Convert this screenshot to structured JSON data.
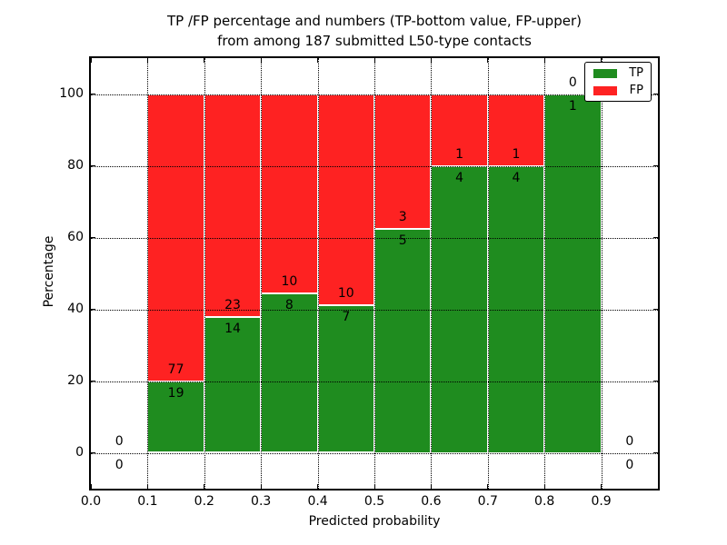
{
  "chart_data": {
    "type": "bar",
    "stacked": true,
    "normalized": "percent",
    "title_lines": [
      "TP /FP percentage and numbers (TP-bottom value, FP-upper)",
      "from among 187 submitted L50-type contacts"
    ],
    "xlabel": "Predicted probability",
    "ylabel": "Percentage",
    "xlim": [
      0.0,
      1.0
    ],
    "ylim": [
      -10,
      110
    ],
    "xticks": [
      0.0,
      0.1,
      0.2,
      0.3,
      0.4,
      0.5,
      0.6,
      0.7,
      0.8,
      0.9
    ],
    "xtick_labels": [
      "0.0",
      "0.1",
      "0.2",
      "0.3",
      "0.4",
      "0.5",
      "0.6",
      "0.7",
      "0.8",
      "0.9"
    ],
    "yticks": [
      0,
      20,
      40,
      60,
      80,
      100
    ],
    "ytick_labels": [
      "0",
      "20",
      "40",
      "60",
      "80",
      "100"
    ],
    "grid": true,
    "bin_width": 0.1,
    "total_contacts": 187,
    "legend": {
      "position": "upper-right",
      "entries": [
        {
          "label": "TP",
          "color": "#1f8c1f"
        },
        {
          "label": "FP",
          "color": "#fe2222"
        }
      ]
    },
    "series": [
      {
        "name": "TP",
        "color": "#1f8c1f",
        "values": [
          0,
          19,
          14,
          8,
          7,
          5,
          4,
          4,
          1,
          0
        ]
      },
      {
        "name": "FP",
        "color": "#fe2222",
        "values": [
          0,
          77,
          23,
          10,
          10,
          3,
          1,
          1,
          0,
          0
        ]
      }
    ],
    "bins": [
      {
        "x_start": 0.0,
        "x_end": 0.1,
        "tp": 0,
        "fp": 0
      },
      {
        "x_start": 0.1,
        "x_end": 0.2,
        "tp": 19,
        "fp": 77
      },
      {
        "x_start": 0.2,
        "x_end": 0.3,
        "tp": 14,
        "fp": 23
      },
      {
        "x_start": 0.3,
        "x_end": 0.4,
        "tp": 8,
        "fp": 10
      },
      {
        "x_start": 0.4,
        "x_end": 0.5,
        "tp": 7,
        "fp": 10
      },
      {
        "x_start": 0.5,
        "x_end": 0.6,
        "tp": 5,
        "fp": 3
      },
      {
        "x_start": 0.6,
        "x_end": 0.7,
        "tp": 4,
        "fp": 1
      },
      {
        "x_start": 0.7,
        "x_end": 0.8,
        "tp": 4,
        "fp": 1
      },
      {
        "x_start": 0.8,
        "x_end": 0.9,
        "tp": 1,
        "fp": 0
      },
      {
        "x_start": 0.9,
        "x_end": 1.0,
        "tp": 0,
        "fp": 0
      }
    ]
  }
}
